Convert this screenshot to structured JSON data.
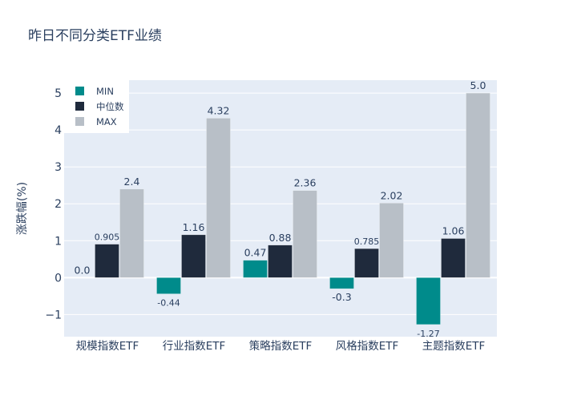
{
  "chart_data": {
    "type": "bar",
    "title": "昨日不同分类ETF业绩",
    "xlabel": "",
    "ylabel": "涨跌幅(%)",
    "categories": [
      "规模指数ETF",
      "行业指数ETF",
      "策略指数ETF",
      "风格指数ETF",
      "主题指数ETF"
    ],
    "series": [
      {
        "name": "MIN",
        "color": "#008b8b",
        "values": [
          0.0,
          -0.44,
          0.47,
          -0.3,
          -1.27
        ],
        "labels": [
          "0.0",
          "-0.44",
          "0.47",
          "-0.3",
          "-1.27"
        ]
      },
      {
        "name": "中位数",
        "color": "#1f2a3c",
        "values": [
          0.905,
          1.16,
          0.88,
          0.785,
          1.06
        ],
        "labels": [
          "0.905",
          "1.16",
          "0.88",
          "0.785",
          "1.06"
        ]
      },
      {
        "name": "MAX",
        "color": "#b8bfc7",
        "values": [
          2.4,
          4.32,
          2.36,
          2.02,
          5.0
        ],
        "labels": [
          "2.4",
          "4.32",
          "2.36",
          "2.02",
          "5.0"
        ]
      }
    ],
    "ylim": [
      -1.6,
      5.35
    ],
    "yticks": [
      -1,
      0,
      1,
      2,
      3,
      4,
      5
    ],
    "ytick_labels": [
      "−1",
      "0",
      "1",
      "2",
      "3",
      "4",
      "5"
    ],
    "grid": true,
    "legend": "top-left",
    "background": "#e5ecf6"
  }
}
